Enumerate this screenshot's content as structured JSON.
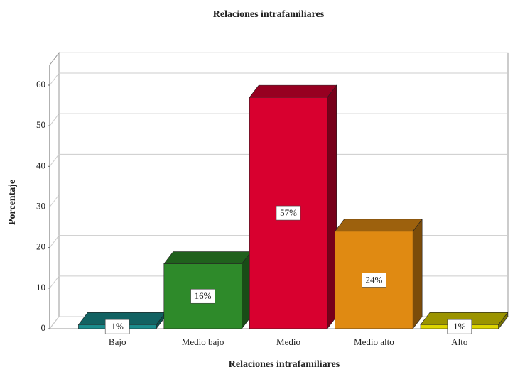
{
  "chart_data": {
    "type": "bar3d",
    "title": "Relaciones intrafamiliares",
    "xlabel": "Relaciones intrafamiliares",
    "ylabel": "Porcentaje",
    "categories": [
      "Bajo",
      "Medio bajo",
      "Medio",
      "Medio alto",
      "Alto"
    ],
    "values": [
      1,
      16,
      57,
      24,
      1
    ],
    "value_labels": [
      "1%",
      "16%",
      "57%",
      "24%",
      "1%"
    ],
    "colors": [
      "#1a8c8c",
      "#2e8a2a",
      "#d8002f",
      "#e08a12",
      "#ddd400"
    ],
    "ylim": [
      0,
      65
    ],
    "yticks": [
      0,
      10,
      20,
      30,
      40,
      50,
      60
    ],
    "grid": true
  }
}
